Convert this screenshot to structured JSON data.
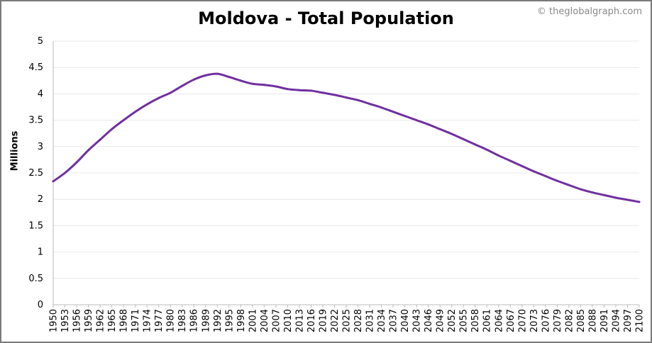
{
  "chart_data": {
    "type": "line",
    "title": "Moldova - Total Population",
    "credit": "© theglobalgraph.com",
    "ylabel": "Millions",
    "xlabel": "",
    "ylim": [
      0,
      5
    ],
    "xlim": [
      1950,
      2100
    ],
    "yticks": [
      "0",
      "0.5",
      "1",
      "1.5",
      "2",
      "2.5",
      "3",
      "3.5",
      "4",
      "4.5",
      "5"
    ],
    "xticks": [
      "1950",
      "1953",
      "1956",
      "1959",
      "1962",
      "1965",
      "1968",
      "1971",
      "1974",
      "1977",
      "1980",
      "1983",
      "1986",
      "1989",
      "1992",
      "1995",
      "1998",
      "2001",
      "2004",
      "2007",
      "2010",
      "2013",
      "2016",
      "2019",
      "2022",
      "2025",
      "2028",
      "2031",
      "2034",
      "2037",
      "2040",
      "2043",
      "2046",
      "2049",
      "2052",
      "2055",
      "2058",
      "2061",
      "2064",
      "2067",
      "2070",
      "2073",
      "2076",
      "2079",
      "2082",
      "2085",
      "2088",
      "2091",
      "2094",
      "2097",
      "2100"
    ],
    "grid": "horizontal",
    "line_color": "#7030a0",
    "series": [
      {
        "x": [
          1950,
          1953,
          1956,
          1959,
          1962,
          1965,
          1968,
          1971,
          1974,
          1977,
          1980,
          1983,
          1986,
          1989,
          1992,
          1995,
          1998,
          2001,
          2004,
          2007,
          2010,
          2013,
          2016,
          2019,
          2022,
          2025,
          2028,
          2031,
          2034,
          2037,
          2040,
          2043,
          2046,
          2049,
          2052,
          2055,
          2058,
          2061,
          2064,
          2067,
          2070,
          2073,
          2076,
          2079,
          2082,
          2085,
          2088,
          2091,
          2094,
          2097,
          2100
        ],
        "values": [
          2.34,
          2.5,
          2.7,
          2.93,
          3.13,
          3.33,
          3.5,
          3.66,
          3.8,
          3.92,
          4.02,
          4.15,
          4.27,
          4.35,
          4.38,
          4.32,
          4.25,
          4.19,
          4.17,
          4.14,
          4.09,
          4.07,
          4.06,
          4.02,
          3.98,
          3.93,
          3.88,
          3.81,
          3.74,
          3.66,
          3.58,
          3.5,
          3.42,
          3.33,
          3.24,
          3.14,
          3.04,
          2.94,
          2.83,
          2.73,
          2.63,
          2.53,
          2.44,
          2.35,
          2.27,
          2.19,
          2.13,
          2.08,
          2.03,
          1.99,
          1.95
        ]
      }
    ]
  }
}
